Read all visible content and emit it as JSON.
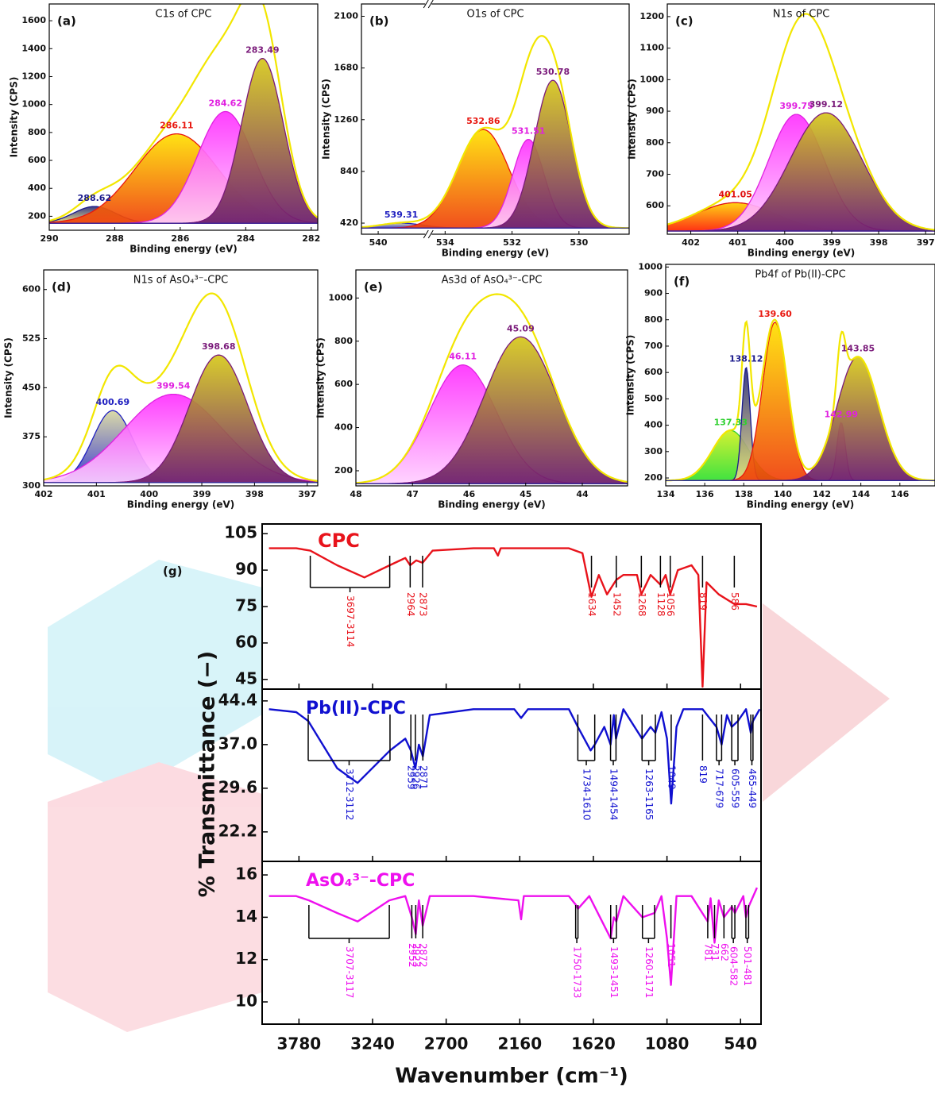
{
  "chart_data": [
    {
      "type": "area",
      "label": "(a)",
      "title": "C1s of CPC",
      "xlabel": "Binding energy (eV)",
      "ylabel": "Intensity (CPS)",
      "xlim": [
        290,
        281.8
      ],
      "xticks": [
        290,
        288,
        286,
        284,
        282
      ],
      "ylim": [
        100,
        1720
      ],
      "yticks": [
        200,
        400,
        600,
        800,
        1000,
        1200,
        1400,
        1600
      ],
      "baseline": 150,
      "peaks": [
        {
          "center": 288.62,
          "height": 270,
          "fwhm": 1.5,
          "color": "#1a1a8c",
          "fill": [
            "#2a2a7a",
            "#e8e080"
          ]
        },
        {
          "center": 286.11,
          "height": 790,
          "fwhm": 3.0,
          "color": "#e8170f",
          "fill": [
            "#ffe000",
            "#f0400a"
          ]
        },
        {
          "center": 284.62,
          "height": 950,
          "fwhm": 2.0,
          "color": "#e020e0",
          "fill": [
            "#ff30ff",
            "#ffd0ff"
          ]
        },
        {
          "center": 283.49,
          "height": 1330,
          "fwhm": 1.5,
          "color": "#7a1a7a",
          "fill": [
            "#d6c81a",
            "#6a1a6a"
          ]
        }
      ]
    },
    {
      "type": "area",
      "label": "(b)",
      "title": "O1s of CPC",
      "xlabel": "Binding energy (eV)",
      "ylabel": "Intensity (CPS)",
      "xlim": [
        540.5,
        528.5
      ],
      "xbreak": [
        538.5,
        534.5
      ],
      "xticks": [
        540,
        534,
        532,
        530
      ],
      "ylim": [
        330,
        2200
      ],
      "yticks": [
        420,
        840,
        1260,
        1680,
        2100
      ],
      "baseline": 380,
      "peaks": [
        {
          "center": 539.31,
          "height": 420,
          "fwhm": 1.5,
          "color": "#2020c0",
          "fill": [
            "#d8d8a0",
            "#2a2ad0"
          ]
        },
        {
          "center": 532.86,
          "height": 1180,
          "fwhm": 1.8,
          "color": "#e8170f",
          "fill": [
            "#ffe000",
            "#f0400a"
          ]
        },
        {
          "center": 531.51,
          "height": 1100,
          "fwhm": 1.1,
          "color": "#e020e0",
          "fill": [
            "#ff30ff",
            "#ffd0ff"
          ]
        },
        {
          "center": 530.78,
          "height": 1580,
          "fwhm": 1.3,
          "color": "#7a1a7a",
          "fill": [
            "#d6c81a",
            "#6a1a6a"
          ]
        }
      ]
    },
    {
      "type": "area",
      "label": "(c)",
      "title": "N1s of CPC",
      "xlabel": "Binding energy (eV)",
      "ylabel": "Intensity (CPS)",
      "xlim": [
        402.5,
        396.8
      ],
      "xticks": [
        402,
        401,
        400,
        399,
        398,
        397
      ],
      "ylim": [
        510,
        1240
      ],
      "yticks": [
        600,
        700,
        800,
        900,
        1000,
        1100,
        1200
      ],
      "baseline": 520,
      "peaks": [
        {
          "center": 401.05,
          "height": 610,
          "fwhm": 2.0,
          "color": "#e01010",
          "fill": [
            "#ffd000",
            "#ff2000"
          ]
        },
        {
          "center": 399.75,
          "height": 890,
          "fwhm": 1.4,
          "color": "#e020e0",
          "fill": [
            "#ff30ff",
            "#ffd0ff"
          ]
        },
        {
          "center": 399.12,
          "height": 895,
          "fwhm": 1.8,
          "color": "#7a1a7a",
          "fill": [
            "#d6c81a",
            "#6a1a6a"
          ]
        }
      ]
    },
    {
      "type": "area",
      "label": "(d)",
      "title": "N1s of AsO₄³⁻-CPC",
      "xlabel": "Binding energy (eV)",
      "ylabel": "Intensity (CPS)",
      "xlim": [
        402,
        396.8
      ],
      "xticks": [
        402,
        401,
        400,
        399,
        398,
        397
      ],
      "ylim": [
        300,
        630
      ],
      "yticks": [
        300,
        375,
        450,
        525,
        600
      ],
      "baseline": 305,
      "peaks": [
        {
          "center": 400.69,
          "height": 415,
          "fwhm": 0.9,
          "color": "#2020c0",
          "fill": [
            "#d8d8a0",
            "#2a2ad0"
          ]
        },
        {
          "center": 399.54,
          "height": 440,
          "fwhm": 2.2,
          "color": "#e020e0",
          "fill": [
            "#ff30ff",
            "#ffd0ff"
          ]
        },
        {
          "center": 398.68,
          "height": 500,
          "fwhm": 1.3,
          "color": "#7a1a7a",
          "fill": [
            "#d6c81a",
            "#6a1a6a"
          ]
        }
      ]
    },
    {
      "type": "area",
      "label": "(e)",
      "title": "As3d of AsO₄³⁻-CPC",
      "xlabel": "Binding energy (eV)",
      "ylabel": "Intensity (CPS)",
      "xlim": [
        48,
        43.2
      ],
      "xticks": [
        48,
        47,
        46,
        45,
        44
      ],
      "ylim": [
        130,
        1130
      ],
      "yticks": [
        200,
        400,
        600,
        800,
        1000
      ],
      "baseline": 140,
      "peaks": [
        {
          "center": 46.11,
          "height": 690,
          "fwhm": 1.4,
          "color": "#e020e0",
          "fill": [
            "#ff30ff",
            "#ffd0ff"
          ]
        },
        {
          "center": 45.09,
          "height": 820,
          "fwhm": 1.5,
          "color": "#7a1a7a",
          "fill": [
            "#d6c81a",
            "#6a1a6a"
          ]
        }
      ]
    },
    {
      "type": "area",
      "label": "(f)",
      "title": "Pb4f of  Pb(II)-CPC",
      "xlabel": "Binding energy (eV)",
      "ylabel": "Intensity (CPS)",
      "xlim": [
        134,
        147.8
      ],
      "xticks": [
        134,
        136,
        138,
        140,
        142,
        144,
        146
      ],
      "ylim": [
        170,
        1010
      ],
      "yticks": [
        200,
        300,
        400,
        500,
        600,
        700,
        800,
        900,
        1000
      ],
      "baseline": 190,
      "peaks": [
        {
          "center": 137.33,
          "height": 380,
          "fwhm": 2.2,
          "color": "#30d030",
          "fill": [
            "#d0f020",
            "#30e030"
          ]
        },
        {
          "center": 138.12,
          "height": 620,
          "fwhm": 0.5,
          "color": "#1a1a8c",
          "fill": [
            "#2a2a7a",
            "#e8e080"
          ]
        },
        {
          "center": 139.6,
          "label": "139.60",
          "height": 790,
          "fwhm": 1.5,
          "color": "#e8170f",
          "fill": [
            "#ffe000",
            "#f0400a"
          ]
        },
        {
          "center": 142.99,
          "height": 410,
          "fwhm": 0.5,
          "color": "#e020e0",
          "fill": [
            "#ff30ff",
            "#ffd0ff"
          ]
        },
        {
          "center": 143.85,
          "height": 660,
          "fwhm": 2.5,
          "color": "#7a1a7a",
          "fill": [
            "#d6c81a",
            "#6a1a6a"
          ]
        }
      ]
    },
    {
      "type": "line",
      "label": "(g)",
      "xlabel": "Wavenumber (cm⁻¹)",
      "ylabel": "% Transmittance (−)",
      "xlim": [
        4050,
        390
      ],
      "xticks": [
        3780,
        3240,
        2700,
        2160,
        1620,
        1080,
        540
      ],
      "panels": [
        {
          "name": "CPC",
          "color": "#e8131b",
          "ylim": [
            41,
            109
          ],
          "yticks": [
            45,
            60,
            75,
            90,
            105
          ],
          "x": [
            4000,
            3800,
            3697,
            3500,
            3300,
            3114,
            3000,
            2964,
            2920,
            2873,
            2800,
            2500,
            2350,
            2320,
            2300,
            2200,
            2000,
            1800,
            1700,
            1634,
            1580,
            1520,
            1452,
            1400,
            1300,
            1268,
            1200,
            1128,
            1090,
            1056,
            1000,
            900,
            850,
            819,
            790,
            700,
            586,
            500,
            420
          ],
          "values": [
            99,
            99,
            98,
            92,
            87,
            92,
            95,
            92,
            94,
            93,
            98,
            99,
            99,
            96,
            99,
            99,
            99,
            99,
            97,
            79,
            88,
            80,
            86,
            88,
            88,
            80,
            88,
            84,
            88,
            80,
            90,
            92,
            88,
            42,
            85,
            80,
            76,
            76,
            75
          ],
          "bands": [
            {
              "label": "3697-3114",
              "from": 3697,
              "to": 3114
            },
            {
              "at": 2964
            },
            {
              "at": 2873
            },
            {
              "at": 1634
            },
            {
              "at": 1452
            },
            {
              "at": 1268
            },
            {
              "at": 1128
            },
            {
              "at": 1056
            },
            {
              "at": 819
            },
            {
              "at": 586
            }
          ]
        },
        {
          "name": "Pb(II)-CPC",
          "color": "#1010d0",
          "ylim": [
            17.2,
            46.4
          ],
          "yticks": [
            {
              "value": 22.2,
              "label": "22.2"
            },
            {
              "value": 29.6,
              "label": "29.6"
            },
            {
              "value": 37,
              "label": "37.0"
            },
            {
              "value": 44.4,
              "label": "44.4"
            }
          ],
          "x": [
            4000,
            3800,
            3712,
            3500,
            3350,
            3112,
            3000,
            2959,
            2926,
            2900,
            2871,
            2820,
            2500,
            2200,
            2150,
            2100,
            1800,
            1734,
            1640,
            1610,
            1540,
            1494,
            1470,
            1454,
            1400,
            1263,
            1200,
            1165,
            1120,
            1080,
            1049,
            1010,
            960,
            819,
            717,
            679,
            640,
            605,
            559,
            500,
            465,
            449,
            400
          ],
          "values": [
            43,
            42.5,
            41,
            33,
            30.5,
            36,
            38,
            36,
            33,
            37,
            35,
            42,
            43,
            43,
            41.5,
            43,
            43,
            40,
            36,
            37,
            40,
            37,
            42,
            38,
            43,
            38,
            40,
            39,
            42.5,
            38,
            27,
            40,
            43,
            43,
            40,
            37,
            42,
            40,
            41,
            43,
            39,
            41,
            43
          ],
          "bands": [
            {
              "label": "3712-3112",
              "from": 3712,
              "to": 3112
            },
            {
              "at": 2959
            },
            {
              "at": 2926
            },
            {
              "at": 2871
            },
            {
              "label": "1734-1610",
              "from": 1734,
              "to": 1610
            },
            {
              "label": "1494-1454",
              "from": 1494,
              "to": 1454
            },
            {
              "label": "1263-1165",
              "from": 1263,
              "to": 1165
            },
            {
              "at": 1049
            },
            {
              "at": 819
            },
            {
              "label": "717-679",
              "from": 717,
              "to": 679
            },
            {
              "label": "605-559",
              "from": 605,
              "to": 559
            },
            {
              "label": "465-449",
              "from": 465,
              "to": 449
            }
          ]
        },
        {
          "name": "AsO₄³⁻-CPC",
          "color": "#ee10ee",
          "ylim": [
            8.95,
            16.64
          ],
          "yticks": [
            10,
            12,
            14,
            16
          ],
          "x": [
            4000,
            3800,
            3707,
            3500,
            3350,
            3117,
            3000,
            2952,
            2923,
            2900,
            2872,
            2820,
            2500,
            2170,
            2150,
            2130,
            1800,
            1750,
            1733,
            1650,
            1493,
            1470,
            1451,
            1400,
            1260,
            1171,
            1120,
            1080,
            1051,
            1010,
            900,
            781,
            760,
            731,
            700,
            662,
            604,
            582,
            520,
            501,
            481,
            420
          ],
          "values": [
            15,
            15,
            14.8,
            14.2,
            13.8,
            14.8,
            15,
            14,
            13.2,
            14.8,
            13.6,
            15,
            15,
            14.8,
            13.9,
            15,
            15,
            14.6,
            14.4,
            15,
            13,
            14,
            13.8,
            15,
            14,
            14.2,
            15,
            13,
            10.8,
            15,
            15,
            13.8,
            14.9,
            12.8,
            14.8,
            14,
            14.5,
            14.2,
            15,
            14,
            14.5,
            15.4
          ],
          "bands": [
            {
              "label": "3707-3117",
              "from": 3707,
              "to": 3117
            },
            {
              "at": 2952
            },
            {
              "at": 2923
            },
            {
              "at": 2872
            },
            {
              "label": "1750-1733",
              "from": 1750,
              "to": 1733
            },
            {
              "label": "1493-1451",
              "from": 1493,
              "to": 1451
            },
            {
              "label": "1260-1171",
              "from": 1260,
              "to": 1171
            },
            {
              "at": 1051
            },
            {
              "at": 781
            },
            {
              "at": 731
            },
            {
              "at": 662
            },
            {
              "label": "604-582",
              "from": 604,
              "to": 582
            },
            {
              "label": "501-481",
              "from": 501,
              "to": 481
            }
          ]
        }
      ]
    }
  ]
}
